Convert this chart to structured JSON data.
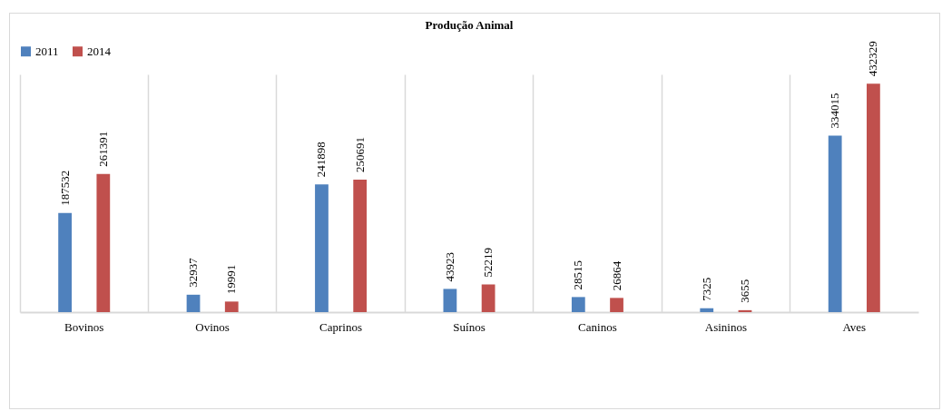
{
  "chart_data": {
    "type": "bar",
    "title": "Produção Animal",
    "categories": [
      "Bovinos",
      "Ovinos",
      "Caprinos",
      "Suínos",
      "Caninos",
      "Asininos",
      "Aves"
    ],
    "series": [
      {
        "name": "2011",
        "color": "#4f81bd",
        "values": [
          187532,
          32937,
          241898,
          43923,
          28515,
          7325,
          334015
        ]
      },
      {
        "name": "2014",
        "color": "#c0504d",
        "values": [
          261391,
          19991,
          250691,
          52219,
          26864,
          3655,
          432329
        ]
      }
    ],
    "data_labels": true,
    "legend": "top",
    "grid": "x"
  }
}
